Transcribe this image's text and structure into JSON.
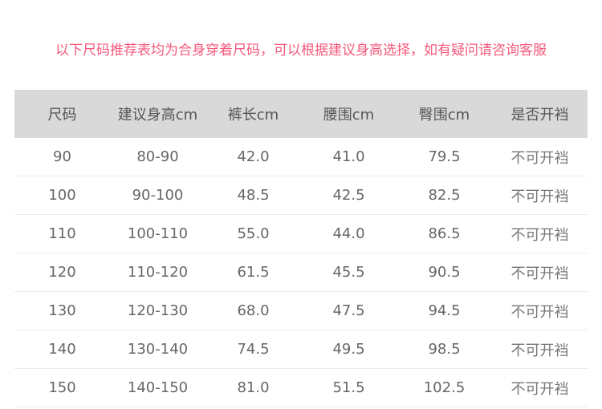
{
  "note": "以下尺码推荐表均为合身穿着尺码，可以根据建议身高选择，如有疑问请咨询客服",
  "colors": {
    "note": "#f55a7c",
    "header_bg": "#d9d9d9"
  },
  "headers": [
    "尺码",
    "建议身高cm",
    "裤长cm",
    "腰围cm",
    "臀围cm",
    "是否开裆"
  ],
  "rows": [
    [
      "90",
      "80-90",
      "42.0",
      "41.0",
      "79.5",
      "不可开裆"
    ],
    [
      "100",
      "90-100",
      "48.5",
      "42.5",
      "82.5",
      "不可开裆"
    ],
    [
      "110",
      "100-110",
      "55.0",
      "44.0",
      "86.5",
      "不可开裆"
    ],
    [
      "120",
      "110-120",
      "61.5",
      "45.5",
      "90.5",
      "不可开裆"
    ],
    [
      "130",
      "120-130",
      "68.0",
      "47.5",
      "94.5",
      "不可开裆"
    ],
    [
      "140",
      "130-140",
      "74.5",
      "49.5",
      "98.5",
      "不可开裆"
    ],
    [
      "150",
      "140-150",
      "81.0",
      "51.5",
      "102.5",
      "不可开裆"
    ]
  ]
}
